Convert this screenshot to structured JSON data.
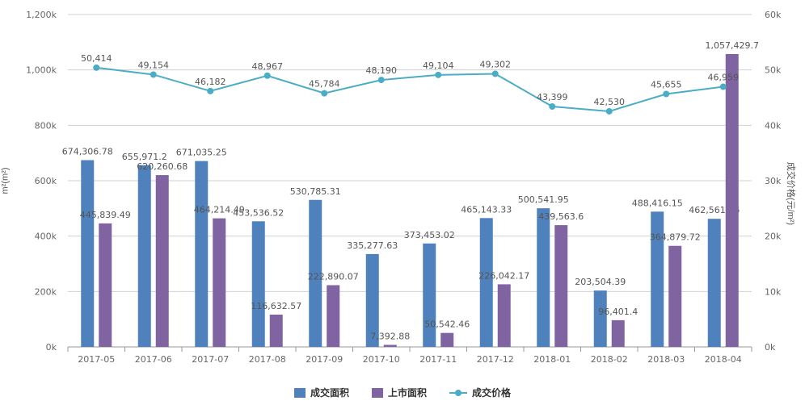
{
  "chart_data": {
    "type": "bar",
    "categories": [
      "2017-05",
      "2017-06",
      "2017-07",
      "2017-08",
      "2017-09",
      "2017-10",
      "2017-11",
      "2017-12",
      "2018-01",
      "2018-02",
      "2018-03",
      "2018-04"
    ],
    "series": [
      {
        "name": "成交面积",
        "type": "bar",
        "axis": "left",
        "color": "#4f81bd",
        "values": [
          674306.78,
          655971.2,
          671035.25,
          453536.52,
          530785.31,
          335277.63,
          373453.02,
          465143.33,
          500541.95,
          203504.39,
          488416.15,
          462561.96
        ],
        "labels": [
          "674,306.78",
          "655,971.2",
          "671,035.25",
          "453,536.52",
          "530,785.31",
          "335,277.63",
          "373,453.02",
          "465,143.33",
          "500,541.95",
          "203,504.39",
          "488,416.15",
          "462,561.96"
        ]
      },
      {
        "name": "上市面积",
        "type": "bar",
        "axis": "left",
        "color": "#8064a2",
        "values": [
          445839.49,
          620260.68,
          464214.49,
          116632.57,
          222890.07,
          7392.88,
          50542.46,
          226042.17,
          439563.6,
          96401.4,
          364879.72,
          1057429.7
        ],
        "labels": [
          "445,839.49",
          "620,260.68",
          "464,214.49",
          "116,632.57",
          "222,890.07",
          "7,392.88",
          "50,542.46",
          "226,042.17",
          "439,563.6",
          "96,401.4",
          "364,879.72",
          "1,057,429.7"
        ]
      },
      {
        "name": "成交价格",
        "type": "line",
        "axis": "right",
        "color": "#4bacc6",
        "values": [
          50414,
          49154,
          46182,
          48967,
          45784,
          48190,
          49104,
          49302,
          43399,
          42530,
          45655,
          46959
        ],
        "labels": [
          "50,414",
          "49,154",
          "46,182",
          "48,967",
          "45,784",
          "48,190",
          "49,104",
          "49,302",
          "43,399",
          "42,530",
          "45,655",
          "46,959"
        ]
      }
    ],
    "ylabel": "m²(m²)",
    "y2label": "成交价格(元/m²)",
    "ylim": [
      0,
      1200000
    ],
    "y2lim": [
      0,
      60000
    ],
    "yticks": [
      "0k",
      "200k",
      "400k",
      "600k",
      "800k",
      "1,000k",
      "1,200k"
    ],
    "y2ticks": [
      "0k",
      "10k",
      "20k",
      "30k",
      "40k",
      "50k",
      "60k"
    ],
    "grid": true,
    "legend": "bottom-center"
  }
}
